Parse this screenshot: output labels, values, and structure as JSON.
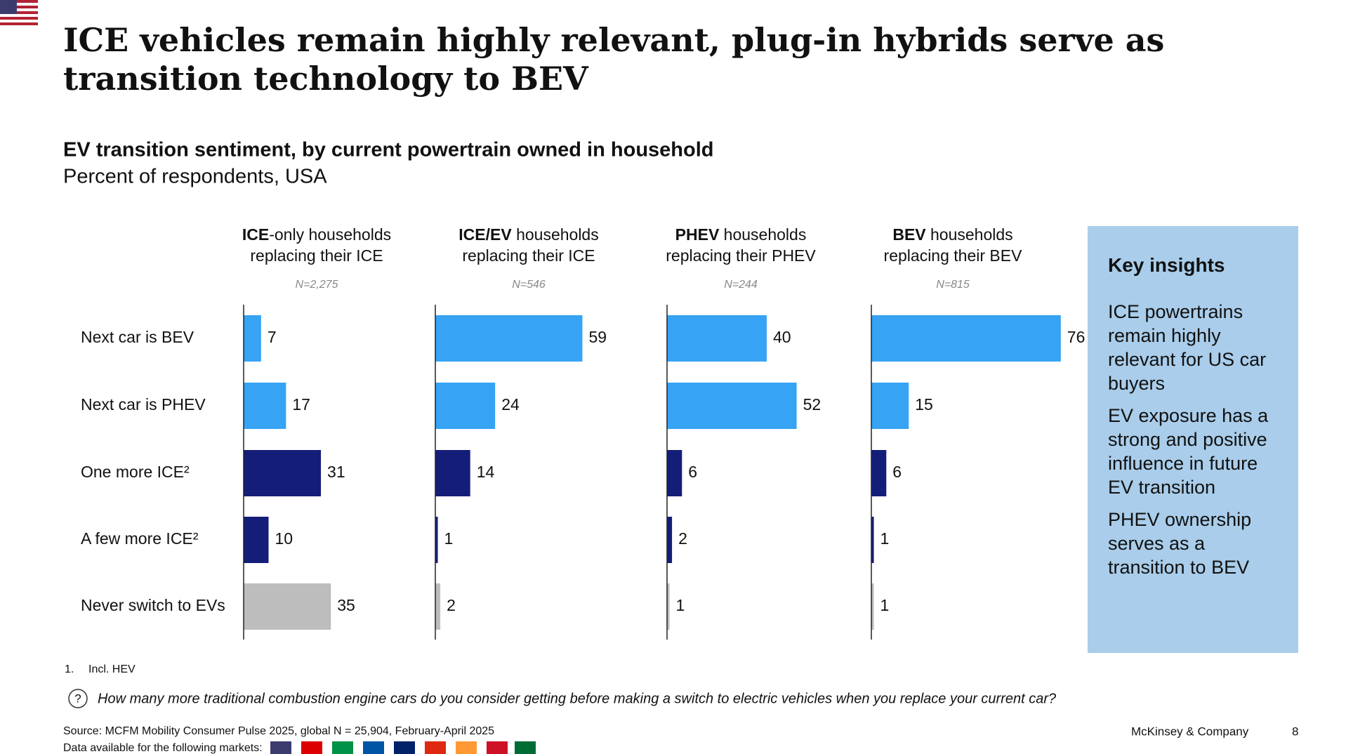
{
  "chart_data": {
    "type": "bar",
    "title": "ICE vehicles remain highly relevant, plug-in hybrids serve as transition technology to BEV",
    "subtitle": "EV transition sentiment, by current powertrain owned in household",
    "unit_line": "Percent of respondents, USA",
    "categories": [
      "Next car is BEV",
      "Next car is PHEV",
      "One more ICE²",
      "A few more ICE²",
      "Never switch to EVs"
    ],
    "colors": [
      "#36a3f4",
      "#36a3f4",
      "#141e78",
      "#141e78",
      "#bdbdbd"
    ],
    "panels": [
      {
        "header_bold": "ICE",
        "header": "-only households",
        "header_line2": "replacing their ICE",
        "n": "N=2,275",
        "values": [
          7,
          17,
          31,
          10,
          35
        ]
      },
      {
        "header_bold": "ICE/EV",
        "header": " households",
        "header_line2": "replacing their ICE",
        "n": "N=546",
        "values": [
          59,
          24,
          14,
          1,
          2
        ]
      },
      {
        "header_bold": "PHEV",
        "header": " households",
        "header_line2": "replacing their PHEV",
        "n": "N=244",
        "values": [
          40,
          52,
          6,
          2,
          1
        ]
      },
      {
        "header_bold": "BEV",
        "header": " households",
        "header_line2": "replacing their BEV",
        "n": "N=815",
        "values": [
          76,
          15,
          6,
          1,
          1
        ]
      }
    ]
  },
  "insights": {
    "title": "Key insights",
    "items": [
      "ICE powertrains remain highly relevant for US car buyers",
      "EV exposure has a strong and positive influence in future EV transition",
      "PHEV ownership serves as a transition to BEV"
    ]
  },
  "footer": {
    "footnote_number": "1.",
    "footnote": "Incl. HEV",
    "question": "How many more traditional combustion engine cars do you consider getting before making a switch to electric vehicles when you replace your current car?",
    "source": "Source: MCFM Mobility Consumer Pulse 2025, global N = 25,904, February-April 2025",
    "markets": "Data available for the following markets:",
    "brand": "McKinsey & Company",
    "page": "8"
  }
}
